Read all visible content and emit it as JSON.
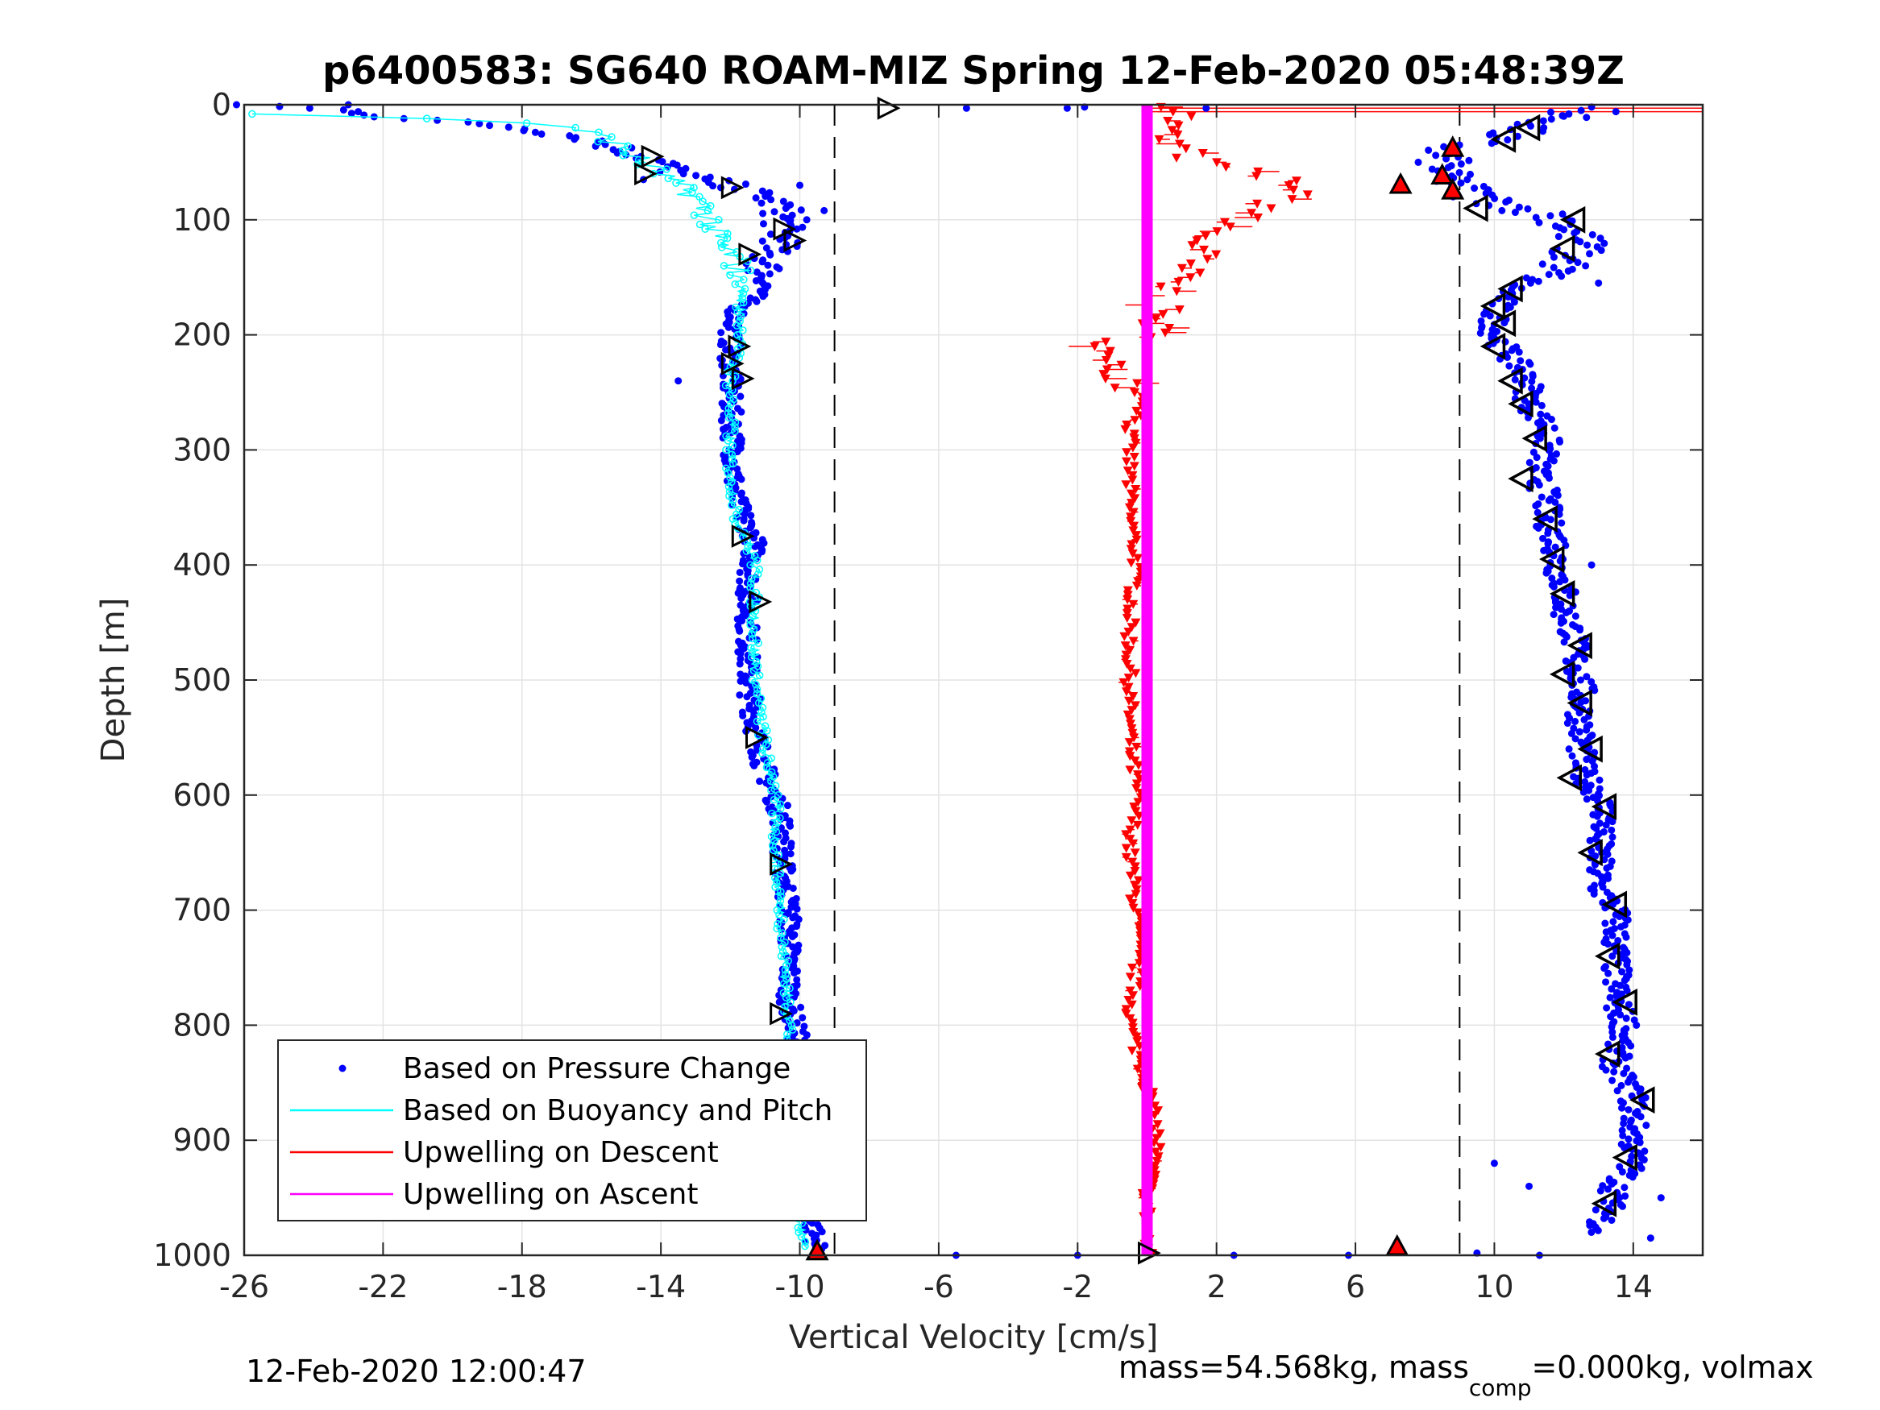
{
  "chart_data": {
    "type": "scatter",
    "title": "p6400583: SG640 ROAM-MIZ Spring 12-Feb-2020 05:48:39Z",
    "xlabel": "Vertical Velocity [cm/s]",
    "ylabel": "Depth [m]",
    "xlim": [
      -26,
      16
    ],
    "ylim": [
      1000,
      0
    ],
    "y_reversed": true,
    "x_ticks": [
      -26,
      -22,
      -18,
      -14,
      -10,
      -6,
      -2,
      2,
      6,
      10,
      14
    ],
    "y_ticks": [
      0,
      100,
      200,
      300,
      400,
      500,
      600,
      700,
      800,
      900,
      1000
    ],
    "x_tick_labels": [
      "-26",
      "-22",
      "-18",
      "-14",
      "-10",
      "-6",
      "-2",
      "2",
      "6",
      "10",
      "14"
    ],
    "y_tick_labels": [
      "0",
      "100",
      "200",
      "300",
      "400",
      "500",
      "600",
      "700",
      "800",
      "900",
      "1000"
    ],
    "grid": true,
    "legend_position": "bottom-left",
    "legend": [
      "Based on Pressure Change",
      "Based on Buoyancy and Pitch",
      "Upwelling on Descent",
      "Upwelling on Ascent"
    ],
    "reference_lines_x": [
      -9,
      9
    ],
    "series": [
      {
        "name": "Based on Pressure Change",
        "style": "dots",
        "color": "#0000ff",
        "descent_profile": {
          "depth": [
            0,
            5,
            10,
            15,
            20,
            30,
            40,
            50,
            60,
            70,
            80,
            90,
            100,
            110,
            120,
            130,
            140,
            150,
            160,
            170,
            180,
            200,
            220,
            240,
            260,
            300,
            340,
            380,
            420,
            460,
            500,
            540,
            580,
            620,
            660,
            700,
            740,
            780,
            820,
            860,
            900,
            940,
            980,
            995
          ],
          "velocity": [
            -26,
            -23,
            -22,
            -20,
            -18,
            -16,
            -15,
            -14,
            -13.5,
            -12,
            -11,
            -10.5,
            -10.5,
            -10.5,
            -10.5,
            -11,
            -11,
            -11,
            -11,
            -11.5,
            -11.8,
            -12,
            -12,
            -12,
            -12,
            -11.9,
            -11.9,
            -11.3,
            -11.5,
            -11.5,
            -11.5,
            -11.3,
            -11,
            -10.5,
            -10.5,
            -10.3,
            -10.3,
            -10.3,
            -10,
            -10,
            -9.8,
            -9.8,
            -9.6,
            -9.5
          ]
        },
        "ascent_profile": {
          "depth": [
            5,
            20,
            40,
            60,
            80,
            100,
            120,
            140,
            160,
            180,
            200,
            220,
            240,
            260,
            280,
            300,
            320,
            340,
            360,
            380,
            400,
            420,
            440,
            460,
            480,
            500,
            520,
            540,
            560,
            580,
            600,
            620,
            640,
            660,
            680,
            700,
            720,
            740,
            760,
            780,
            800,
            820,
            840,
            860,
            880,
            900,
            920,
            940,
            960,
            980
          ],
          "velocity": [
            12.5,
            11,
            8.5,
            8.5,
            9.5,
            12,
            12.5,
            12,
            10.5,
            10,
            10,
            10.5,
            11,
            11,
            11.5,
            11.5,
            11.2,
            11.5,
            11.5,
            11.8,
            11.8,
            12,
            12,
            12.3,
            12.3,
            12.5,
            12.5,
            12.5,
            12.5,
            12.5,
            13,
            13.2,
            13,
            13,
            13,
            13.5,
            13.5,
            13.5,
            13.5,
            13.5,
            13.8,
            13.5,
            13.5,
            14,
            14,
            14,
            14,
            13.5,
            13.3,
            13
          ]
        }
      },
      {
        "name": "Based on Buoyancy and Pitch",
        "style": "line-with-circles",
        "color": "#00ffff",
        "depth": [
          8,
          10,
          12,
          15,
          20,
          25,
          30,
          40,
          50,
          60,
          70,
          80,
          90,
          100,
          110,
          120,
          130,
          140,
          160,
          180,
          200,
          240,
          280,
          320,
          360,
          380,
          400,
          440,
          480,
          520,
          560,
          600,
          640,
          680,
          720,
          760,
          800,
          840,
          880,
          920,
          960,
          995
        ],
        "velocity": [
          -26,
          -23,
          -21,
          -18,
          -16.5,
          -16,
          -15.5,
          -15,
          -14.5,
          -14,
          -13.5,
          -13,
          -12.8,
          -12.5,
          -12.5,
          -12.3,
          -12,
          -11.8,
          -11.7,
          -11.7,
          -11.7,
          -12,
          -12,
          -12,
          -11.8,
          -11.5,
          -11.3,
          -11.3,
          -11.3,
          -11.2,
          -11,
          -10.7,
          -10.7,
          -10.6,
          -10.5,
          -10.4,
          -10.3,
          -10.3,
          -10.2,
          -10.1,
          -10,
          -9.9
        ]
      },
      {
        "name": "Upwelling on Descent",
        "style": "triangle-down-with-line",
        "color": "#ff0000",
        "depth": [
          2,
          10,
          20,
          30,
          40,
          50,
          60,
          70,
          80,
          90,
          100,
          110,
          120,
          130,
          140,
          150,
          160,
          170,
          180,
          190,
          200,
          210,
          220,
          240,
          260,
          280,
          300,
          350,
          400,
          450,
          500,
          550,
          600,
          650,
          700,
          750,
          800,
          850,
          900,
          950,
          998
        ],
        "velocity": [
          1,
          1,
          0.5,
          0.5,
          1,
          1.5,
          3,
          4.5,
          4,
          3.5,
          2.5,
          2,
          1.5,
          1.5,
          1,
          1,
          0.5,
          0.5,
          0.3,
          0.3,
          0,
          -1,
          -1.5,
          -0.5,
          0,
          -0.5,
          -0.5,
          -0.5,
          -0.3,
          -0.5,
          -0.5,
          -0.5,
          -0.3,
          -0.5,
          -0.3,
          -0.3,
          -0.5,
          0,
          0.3,
          0,
          0
        ]
      },
      {
        "name": "Upwelling on Ascent",
        "style": "thick-line",
        "color": "#ff00ff",
        "depth": [
          0,
          1000
        ],
        "velocity": [
          0,
          0
        ]
      }
    ],
    "markers": {
      "descent_triangles": [
        {
          "depth": 3,
          "velocity": -7.5
        },
        {
          "depth": 45,
          "velocity": -14.3
        },
        {
          "depth": 60,
          "velocity": -14.5
        },
        {
          "depth": 72,
          "velocity": -12
        },
        {
          "depth": 108,
          "velocity": -10.5
        },
        {
          "depth": 118,
          "velocity": -10.2
        },
        {
          "depth": 130,
          "velocity": -11.5
        },
        {
          "depth": 210,
          "velocity": -11.8
        },
        {
          "depth": 225,
          "velocity": -12
        },
        {
          "depth": 238,
          "velocity": -11.7
        },
        {
          "depth": 375,
          "velocity": -11.7
        },
        {
          "depth": 432,
          "velocity": -11.2
        },
        {
          "depth": 550,
          "velocity": -11.3
        },
        {
          "depth": 660,
          "velocity": -10.6
        },
        {
          "depth": 790,
          "velocity": -10.6
        },
        {
          "depth": 895,
          "velocity": -10
        },
        {
          "depth": 998,
          "velocity": 0
        }
      ],
      "ascent_triangles": [
        {
          "depth": 20,
          "velocity": 11
        },
        {
          "depth": 30,
          "velocity": 10.3
        },
        {
          "depth": 90,
          "velocity": 9.5
        },
        {
          "depth": 100,
          "velocity": 12.3
        },
        {
          "depth": 125,
          "velocity": 12
        },
        {
          "depth": 160,
          "velocity": 10.5
        },
        {
          "depth": 175,
          "velocity": 10
        },
        {
          "depth": 190,
          "velocity": 10.3
        },
        {
          "depth": 210,
          "velocity": 10
        },
        {
          "depth": 240,
          "velocity": 10.5
        },
        {
          "depth": 260,
          "velocity": 10.8
        },
        {
          "depth": 290,
          "velocity": 11.2
        },
        {
          "depth": 325,
          "velocity": 10.8
        },
        {
          "depth": 360,
          "velocity": 11.5
        },
        {
          "depth": 395,
          "velocity": 11.7
        },
        {
          "depth": 425,
          "velocity": 12
        },
        {
          "depth": 470,
          "velocity": 12.5
        },
        {
          "depth": 495,
          "velocity": 12
        },
        {
          "depth": 520,
          "velocity": 12.5
        },
        {
          "depth": 560,
          "velocity": 12.8
        },
        {
          "depth": 585,
          "velocity": 12.2
        },
        {
          "depth": 610,
          "velocity": 13.2
        },
        {
          "depth": 650,
          "velocity": 12.8
        },
        {
          "depth": 695,
          "velocity": 13.5
        },
        {
          "depth": 740,
          "velocity": 13.3
        },
        {
          "depth": 780,
          "velocity": 13.8
        },
        {
          "depth": 825,
          "velocity": 13.3
        },
        {
          "depth": 865,
          "velocity": 14.3
        },
        {
          "depth": 915,
          "velocity": 13.8
        },
        {
          "depth": 955,
          "velocity": 13.2
        }
      ],
      "red_up_triangles": [
        {
          "depth": 38,
          "velocity": 8.8
        },
        {
          "depth": 62,
          "velocity": 8.5
        },
        {
          "depth": 70,
          "velocity": 7.3
        },
        {
          "depth": 75,
          "velocity": 8.8
        },
        {
          "depth": 993,
          "velocity": 7.2
        },
        {
          "depth": 997,
          "velocity": -9.5
        }
      ]
    },
    "footer_left": "12-Feb-2020 12:00:47",
    "footer_right_prefix": "mass=54.568kg, mass",
    "footer_right_sub": "comp",
    "footer_right_suffix": "=0.000kg, volmax"
  }
}
